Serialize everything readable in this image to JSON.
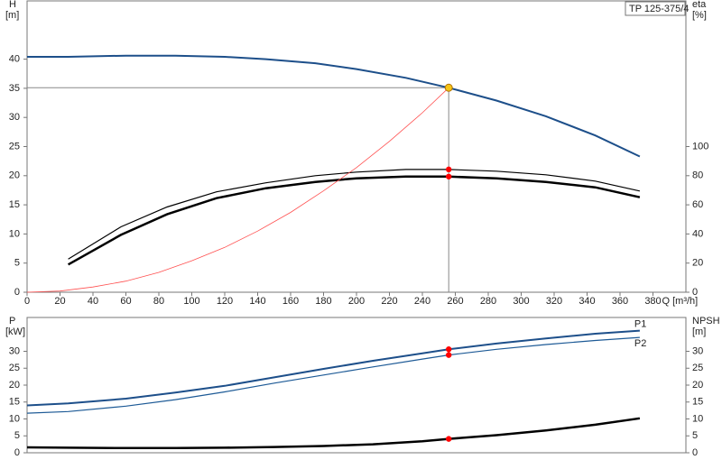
{
  "chart_data": [
    {
      "type": "line",
      "annotation": "TP 125-375/4",
      "y_label": "H",
      "y_unit": "[m]",
      "y2_label": "eta",
      "y2_unit": "[%]",
      "x_label": "Q [m³/h]",
      "xlim": [
        0,
        400
      ],
      "xticks": [
        0,
        20,
        40,
        60,
        80,
        100,
        120,
        140,
        160,
        180,
        200,
        220,
        240,
        260,
        280,
        300,
        320,
        340,
        360,
        380
      ],
      "ylim": [
        0,
        50
      ],
      "yticks": [
        0,
        5,
        10,
        15,
        20,
        25,
        30,
        35,
        40
      ],
      "y2lim": [
        0,
        200
      ],
      "y2ticks": [
        0,
        20,
        40,
        60,
        80,
        100
      ],
      "series": [
        {
          "color": "#1d4f8a",
          "width": 2,
          "x": [
            0,
            25,
            60,
            90,
            120,
            145,
            175,
            200,
            230,
            256,
            285,
            315,
            345,
            372
          ],
          "values": [
            40.4,
            40.4,
            40.6,
            40.6,
            40.4,
            40,
            39.3,
            38.3,
            36.8,
            35.1,
            32.9,
            30.2,
            26.9,
            23.3
          ]
        },
        {
          "color": "#000000",
          "width": 2.5,
          "axis": "y2",
          "x": [
            25,
            57,
            85,
            115,
            145,
            175,
            200,
            230,
            256,
            285,
            315,
            345,
            372
          ],
          "values": [
            19,
            39.4,
            53.5,
            64.6,
            71.4,
            75.7,
            78.2,
            79.4,
            79.4,
            78.2,
            75.7,
            72,
            65.2
          ]
        },
        {
          "color": "#000000",
          "width": 1.2,
          "axis": "y2",
          "x": [
            25,
            57,
            85,
            115,
            145,
            175,
            200,
            230,
            256,
            285,
            315,
            345,
            372
          ],
          "values": [
            22.8,
            44.9,
            58.5,
            68.9,
            75.1,
            80,
            82.5,
            84.3,
            84.3,
            83.1,
            80.6,
            76.3,
            69.5
          ]
        },
        {
          "color": "#ff5050",
          "width": 0.8,
          "x": [
            0,
            20,
            40,
            60,
            80,
            100,
            120,
            140,
            160,
            180,
            200,
            220,
            240,
            256
          ],
          "values": [
            0,
            0.2,
            0.9,
            1.9,
            3.4,
            5.4,
            7.7,
            10.5,
            13.7,
            17.4,
            21.4,
            25.9,
            30.8,
            35.1
          ]
        }
      ],
      "points": [
        {
          "x": 256,
          "y": 35.1,
          "color": "#f5c518",
          "guide": true
        },
        {
          "x": 256,
          "y": 79.4,
          "axis": "y2",
          "color": "#ff0000"
        },
        {
          "x": 256,
          "y": 84.3,
          "axis": "y2",
          "color": "#ff0000"
        }
      ]
    },
    {
      "type": "line",
      "y_label": "P",
      "y_unit": "[kW]",
      "y2_label": "NPSH",
      "y2_unit": "[m]",
      "xlim": [
        0,
        400
      ],
      "ylim": [
        0,
        40
      ],
      "yticks": [
        0,
        5,
        10,
        15,
        20,
        25,
        30
      ],
      "y2lim": [
        0,
        40
      ],
      "y2ticks": [
        0,
        5,
        10,
        15,
        20,
        25,
        30
      ],
      "series": [
        {
          "name": "P1",
          "color": "#1d4f8a",
          "width": 2,
          "x": [
            0,
            25,
            60,
            90,
            120,
            150,
            180,
            210,
            240,
            256,
            285,
            315,
            345,
            372
          ],
          "values": [
            14,
            14.6,
            16,
            17.8,
            19.8,
            22.3,
            24.8,
            27.2,
            29.4,
            30.6,
            32.3,
            33.8,
            35.2,
            36.1
          ]
        },
        {
          "name": "P2",
          "color": "#1d5a96",
          "width": 1.2,
          "x": [
            0,
            25,
            60,
            90,
            120,
            150,
            180,
            210,
            240,
            256,
            285,
            315,
            345,
            372
          ],
          "values": [
            11.7,
            12.2,
            13.8,
            15.7,
            18,
            20.6,
            23,
            25.4,
            27.7,
            28.9,
            30.6,
            32,
            33.2,
            34.1
          ]
        },
        {
          "color": "#000000",
          "width": 2.5,
          "axis": "y2",
          "x": [
            0,
            25,
            60,
            90,
            120,
            150,
            180,
            210,
            240,
            256,
            285,
            315,
            345,
            372
          ],
          "values": [
            1.6,
            1.5,
            1.4,
            1.4,
            1.5,
            1.7,
            2,
            2.5,
            3.4,
            4.1,
            5.2,
            6.6,
            8.3,
            10.2
          ]
        }
      ],
      "points": [
        {
          "x": 256,
          "y": 30.6,
          "color": "#ff0000"
        },
        {
          "x": 256,
          "y": 28.9,
          "color": "#ff0000"
        },
        {
          "x": 256,
          "y": 4.1,
          "axis": "y2",
          "color": "#ff0000"
        }
      ]
    }
  ]
}
